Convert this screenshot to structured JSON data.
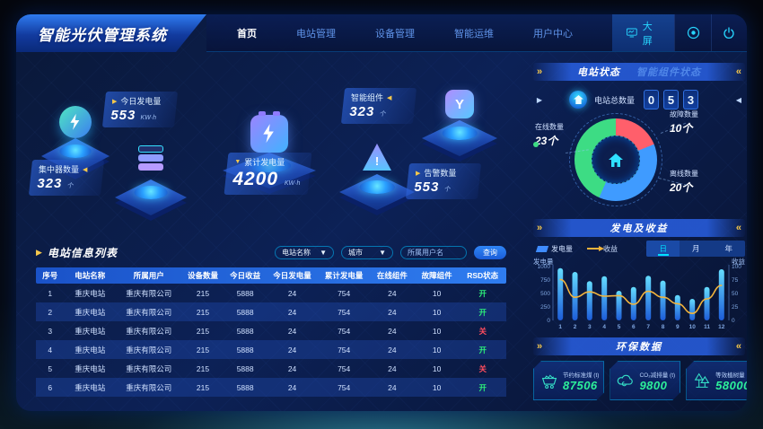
{
  "colors": {
    "accent_cyan": "#00d4ff",
    "accent_yellow": "#f5c84c",
    "status_on": "#2df07a",
    "status_off": "#ff4d5e",
    "bar": "#3f8cff",
    "line": "#f2b43c"
  },
  "header": {
    "logo": "智能光伏管理系统",
    "nav": [
      {
        "id": "home",
        "label": "首页",
        "active": true
      },
      {
        "id": "station-mgmt",
        "label": "电站管理",
        "active": false
      },
      {
        "id": "device-mgmt",
        "label": "设备管理",
        "active": false
      },
      {
        "id": "smart-ops",
        "label": "智能运维",
        "active": false
      },
      {
        "id": "user-center",
        "label": "用户中心",
        "active": false
      }
    ],
    "screen_button": "大屏"
  },
  "scene": {
    "stats": [
      {
        "id": "today",
        "name": "今日发电量",
        "value": "553",
        "unit": "KW·h",
        "node": "gear"
      },
      {
        "id": "cumulative",
        "name": "累计发电量",
        "value": "4200",
        "unit": "KW·h",
        "node": "battery",
        "large": true
      },
      {
        "id": "smart",
        "name": "智能组件",
        "value": "323",
        "unit": "个",
        "node": "component"
      },
      {
        "id": "collector",
        "name": "集中器数量",
        "value": "323",
        "unit": "个",
        "node": "collector"
      },
      {
        "id": "alarm",
        "name": "告警数量",
        "value": "553",
        "unit": "个",
        "node": "alarm"
      }
    ]
  },
  "station_panel": {
    "tabs": {
      "0": "电站状态",
      "1": "智能组件状态"
    },
    "active_tab": 0,
    "total_label": "电站总数量",
    "digits": [
      "0",
      "5",
      "3"
    ],
    "donut": [
      {
        "id": "online",
        "label": "在线数量",
        "value": 23,
        "unit": "个",
        "color": "#3ddc84"
      },
      {
        "id": "fault",
        "label": "故障数量",
        "value": 10,
        "unit": "个",
        "color": "#ff5f6b"
      },
      {
        "id": "offline",
        "label": "离线数量",
        "value": 20,
        "unit": "个",
        "color": "#3f9bff"
      }
    ]
  },
  "energy_panel": {
    "title": "发电及收益",
    "legend": [
      "发电量",
      "收益"
    ],
    "range_buttons": [
      "日",
      "月",
      "年"
    ],
    "active_range": 0,
    "axis_left": "发电量",
    "axis_right": "收益",
    "chart_data": {
      "type": "bar+line",
      "x": [
        1,
        2,
        3,
        4,
        5,
        6,
        7,
        8,
        9,
        10,
        11,
        12
      ],
      "series": [
        {
          "name": "发电量",
          "type": "bar",
          "axis": "left",
          "values": [
            970,
            900,
            730,
            820,
            550,
            620,
            830,
            740,
            470,
            400,
            620,
            950
          ]
        },
        {
          "name": "收益",
          "type": "line",
          "axis": "right",
          "values": [
            76,
            43,
            53,
            45,
            46,
            30,
            54,
            43,
            31,
            13,
            40,
            65
          ]
        }
      ],
      "left_axis": {
        "label": "发电量",
        "ticks": [
          0,
          250,
          500,
          750,
          1000
        ]
      },
      "right_axis": {
        "label": "收益",
        "ticks": [
          0,
          25,
          50,
          75,
          100
        ]
      },
      "legend_position": "top",
      "grid": false
    }
  },
  "eco_panel": {
    "title": "环保数据",
    "cards": [
      {
        "id": "coal",
        "icon": "coal-cart-icon",
        "label": "节约标准煤 (t)",
        "value": "87506"
      },
      {
        "id": "co2",
        "icon": "co2-cloud-icon",
        "label": "CO₂减排量 (t)",
        "value": "9800"
      },
      {
        "id": "trees",
        "icon": "trees-icon",
        "label": "等效植树量",
        "value": "58000"
      }
    ]
  },
  "table_panel": {
    "title": "电站信息列表",
    "filters": {
      "station_label": "电站名称",
      "city_label": "城市",
      "user_placeholder": "所属用户名",
      "search_label": "查询"
    },
    "columns": [
      "序号",
      "电站名称",
      "所属用户",
      "设备数量",
      "今日收益",
      "今日发电量",
      "累计发电量",
      "在线组件",
      "故障组件",
      "RSD状态"
    ],
    "status_on": "开",
    "status_off": "关",
    "rows": [
      [
        "1",
        "重庆电站",
        "重庆有限公司",
        "215",
        "5888",
        "24",
        "754",
        "24",
        "10",
        "开"
      ],
      [
        "2",
        "重庆电站",
        "重庆有限公司",
        "215",
        "5888",
        "24",
        "754",
        "24",
        "10",
        "开"
      ],
      [
        "3",
        "重庆电站",
        "重庆有限公司",
        "215",
        "5888",
        "24",
        "754",
        "24",
        "10",
        "关"
      ],
      [
        "4",
        "重庆电站",
        "重庆有限公司",
        "215",
        "5888",
        "24",
        "754",
        "24",
        "10",
        "开"
      ],
      [
        "5",
        "重庆电站",
        "重庆有限公司",
        "215",
        "5888",
        "24",
        "754",
        "24",
        "10",
        "关"
      ],
      [
        "6",
        "重庆电站",
        "重庆有限公司",
        "215",
        "5888",
        "24",
        "754",
        "24",
        "10",
        "开"
      ]
    ]
  }
}
